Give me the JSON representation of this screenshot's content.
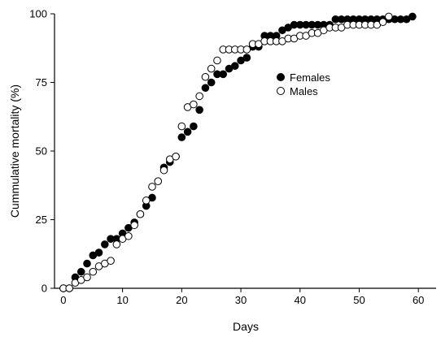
{
  "chart_data": {
    "type": "scatter",
    "title": "",
    "xlabel": "Days",
    "ylabel": "Cummulative mortality (%)",
    "xlim": [
      -1.5,
      63
    ],
    "ylim": [
      0,
      100
    ],
    "xticks": [
      0,
      10,
      20,
      30,
      40,
      50,
      60
    ],
    "yticks": [
      0,
      25,
      50,
      75,
      100
    ],
    "grid": false,
    "legend": "upper-middle-right",
    "series": [
      {
        "name": "Females",
        "marker": "filled-circle",
        "color": "#000000",
        "x": [
          0,
          1,
          2,
          3,
          4,
          5,
          6,
          7,
          8,
          9,
          10,
          11,
          12,
          13,
          14,
          15,
          17,
          18,
          19,
          20,
          21,
          22,
          23,
          24,
          25,
          26,
          27,
          28,
          29,
          30,
          31,
          32,
          33,
          34,
          35,
          36,
          37,
          38,
          39,
          40,
          41,
          42,
          43,
          44,
          45,
          46,
          47,
          48,
          49,
          50,
          51,
          52,
          53,
          54,
          55,
          56,
          57,
          58,
          59
        ],
        "y": [
          0,
          0,
          4,
          6,
          9,
          12,
          13,
          16,
          18,
          18,
          20,
          22,
          24,
          27,
          30,
          33,
          44,
          46,
          48,
          55,
          57,
          59,
          65,
          73,
          75,
          78,
          78,
          80,
          81,
          83,
          84,
          88,
          88,
          92,
          92,
          92,
          94,
          95,
          96,
          96,
          96,
          96,
          96,
          96,
          96,
          98,
          98,
          98,
          98,
          98,
          98,
          98,
          98,
          98,
          98,
          98,
          98,
          98,
          99
        ]
      },
      {
        "name": "Males",
        "marker": "open-circle",
        "color": "#000000",
        "x": [
          0,
          1,
          2,
          3,
          4,
          5,
          6,
          7,
          8,
          9,
          10,
          11,
          12,
          13,
          14,
          15,
          16,
          17,
          18,
          19,
          20,
          21,
          22,
          23,
          24,
          25,
          26,
          27,
          28,
          29,
          30,
          31,
          32,
          33,
          34,
          35,
          36,
          37,
          38,
          39,
          40,
          41,
          42,
          43,
          44,
          45,
          46,
          47,
          48,
          49,
          50,
          51,
          52,
          53,
          54,
          55
        ],
        "y": [
          0,
          0,
          2,
          3,
          4,
          6,
          8,
          9,
          10,
          16,
          18,
          19,
          23,
          27,
          32,
          37,
          39,
          43,
          47,
          48,
          59,
          66,
          67,
          70,
          77,
          80,
          83,
          87,
          87,
          87,
          87,
          87,
          89,
          89,
          90,
          90,
          90,
          90,
          91,
          91,
          92,
          92,
          93,
          93,
          94,
          95,
          95,
          95,
          96,
          96,
          96,
          96,
          96,
          96,
          97,
          99
        ]
      }
    ]
  }
}
